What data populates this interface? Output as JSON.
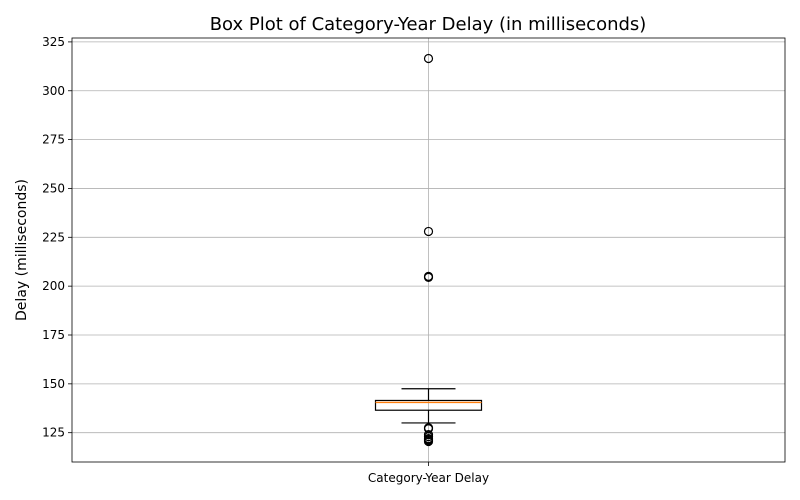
{
  "chart_data": {
    "type": "box",
    "title": "Box Plot of Category-Year Delay (in milliseconds)",
    "xlabel": "",
    "ylabel": "Delay (milliseconds)",
    "categories": [
      "Category-Year Delay"
    ],
    "ylim": [
      110,
      327
    ],
    "yticks": [
      125,
      150,
      175,
      200,
      225,
      250,
      275,
      300,
      325
    ],
    "grid": true,
    "boxes": [
      {
        "name": "Category-Year Delay",
        "whisker_low": 130,
        "q1": 136.5,
        "median": 140.5,
        "q3": 141.5,
        "whisker_high": 147.5,
        "outliers": [
          316.5,
          228,
          205,
          204.5,
          127.5,
          127,
          124,
          123,
          122,
          121.5,
          121,
          120.5
        ]
      }
    ],
    "colors": {
      "median": "#ff7f0e",
      "box": "#000000",
      "grid": "#b0b0b0"
    }
  }
}
